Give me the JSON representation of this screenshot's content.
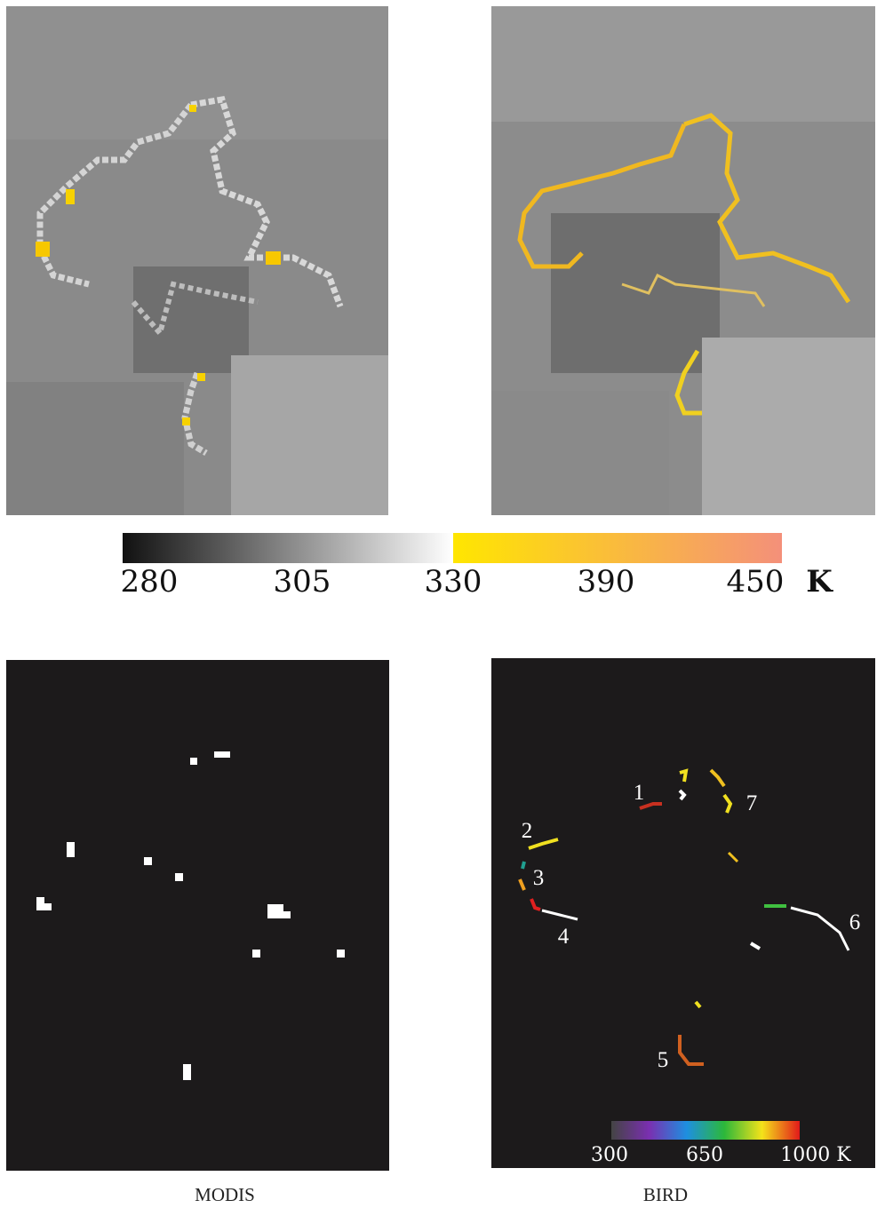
{
  "top_colorbar": {
    "ticks": [
      280,
      305,
      330,
      390,
      450
    ],
    "unit": "K"
  },
  "bird_labels": [
    "1",
    "2",
    "3",
    "4",
    "5",
    "6",
    "7"
  ],
  "bird_colorbar": {
    "ticks": [
      300,
      650,
      "1000 K"
    ]
  },
  "captions": {
    "left": "MODIS",
    "right": "BIRD"
  }
}
